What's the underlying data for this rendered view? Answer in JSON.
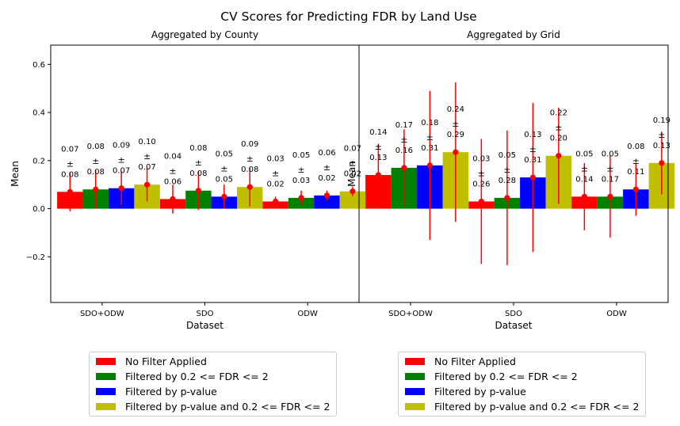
{
  "suptitle": "CV Scores for Predicting FDR by Land Use",
  "legend": {
    "items": [
      {
        "label": "No Filter Applied",
        "color": "#ff0000"
      },
      {
        "label": "Filtered by 0.2 <= FDR <= 2",
        "color": "#008000"
      },
      {
        "label": "Filtered by p-value",
        "color": "#0000ff"
      },
      {
        "label": "Filtered by p-value and 0.2 <= FDR <= 2",
        "color": "#bfbf00"
      }
    ]
  },
  "chart_data": [
    {
      "type": "bar",
      "title": "Aggregated by County",
      "xlabel": "Dataset",
      "ylabel": "Mean",
      "ylim": [
        -0.39,
        0.68
      ],
      "yticks": [
        0.6,
        0.4,
        0.2,
        0.0,
        -0.2
      ],
      "ytick_labels": [
        "0.6",
        "0.4",
        "0.2",
        "0.0",
        "−0.2"
      ],
      "categories": [
        "SDO+ODW",
        "SDO",
        "ODW"
      ],
      "grid": false,
      "series": [
        {
          "name": "No Filter Applied",
          "color": "#ff0000",
          "values": [
            0.07,
            0.04,
            0.03
          ],
          "errors": [
            0.08,
            0.06,
            0.02
          ],
          "value_labels": [
            "0.07",
            "0.04",
            "0.03"
          ],
          "error_labels": [
            "0.08",
            "0.06",
            "0.02"
          ]
        },
        {
          "name": "Filtered by 0.2 <= FDR <= 2",
          "color": "#008000",
          "values": [
            0.08,
            0.075,
            0.045
          ],
          "errors": [
            0.08,
            0.08,
            0.03
          ],
          "value_labels": [
            "0.08",
            "0.08",
            "0.05"
          ],
          "error_labels": [
            "0.08",
            "0.08",
            "0.03"
          ]
        },
        {
          "name": "Filtered by p-value",
          "color": "#0000ff",
          "values": [
            0.085,
            0.05,
            0.055
          ],
          "errors": [
            0.07,
            0.05,
            0.02
          ],
          "value_labels": [
            "0.09",
            "0.05",
            "0.06"
          ],
          "error_labels": [
            "0.07",
            "0.05",
            "0.02"
          ]
        },
        {
          "name": "Filtered by p-value and 0.2 <= FDR <= 2",
          "color": "#bfbf00",
          "values": [
            0.1,
            0.09,
            0.072
          ],
          "errors": [
            0.07,
            0.08,
            0.02
          ],
          "value_labels": [
            "0.10",
            "0.09",
            "0.07"
          ],
          "error_labels": [
            "0.07",
            "0.08",
            "0.02"
          ]
        }
      ]
    },
    {
      "type": "bar",
      "title": "Aggregated by Grid",
      "xlabel": "Dataset",
      "ylabel": "Mean",
      "ylim": [
        -0.39,
        0.68
      ],
      "yticks": [],
      "ytick_labels": [],
      "categories": [
        "SDO+ODW",
        "SDO",
        "ODW"
      ],
      "grid": false,
      "series": [
        {
          "name": "No Filter Applied",
          "color": "#ff0000",
          "values": [
            0.14,
            0.03,
            0.05
          ],
          "errors": [
            0.13,
            0.26,
            0.14
          ],
          "value_labels": [
            "0.14",
            "0.03",
            "0.05"
          ],
          "error_labels": [
            "0.13",
            "0.26",
            "0.14"
          ]
        },
        {
          "name": "Filtered by 0.2 <= FDR <= 2",
          "color": "#008000",
          "values": [
            0.17,
            0.045,
            0.05
          ],
          "errors": [
            0.16,
            0.28,
            0.17
          ],
          "value_labels": [
            "0.17",
            "0.05",
            "0.05"
          ],
          "error_labels": [
            "0.16",
            "0.28",
            "0.17"
          ]
        },
        {
          "name": "Filtered by p-value",
          "color": "#0000ff",
          "values": [
            0.18,
            0.13,
            0.08
          ],
          "errors": [
            0.31,
            0.31,
            0.11
          ],
          "value_labels": [
            "0.18",
            "0.13",
            "0.08"
          ],
          "error_labels": [
            "0.31",
            "0.31",
            "0.11"
          ]
        },
        {
          "name": "Filtered by p-value and 0.2 <= FDR <= 2",
          "color": "#bfbf00",
          "values": [
            0.235,
            0.22,
            0.19
          ],
          "errors": [
            0.29,
            0.2,
            0.13
          ],
          "value_labels": [
            "0.24",
            "0.22",
            "0.19"
          ],
          "error_labels": [
            "0.29",
            "0.20",
            "0.13"
          ]
        }
      ]
    }
  ]
}
